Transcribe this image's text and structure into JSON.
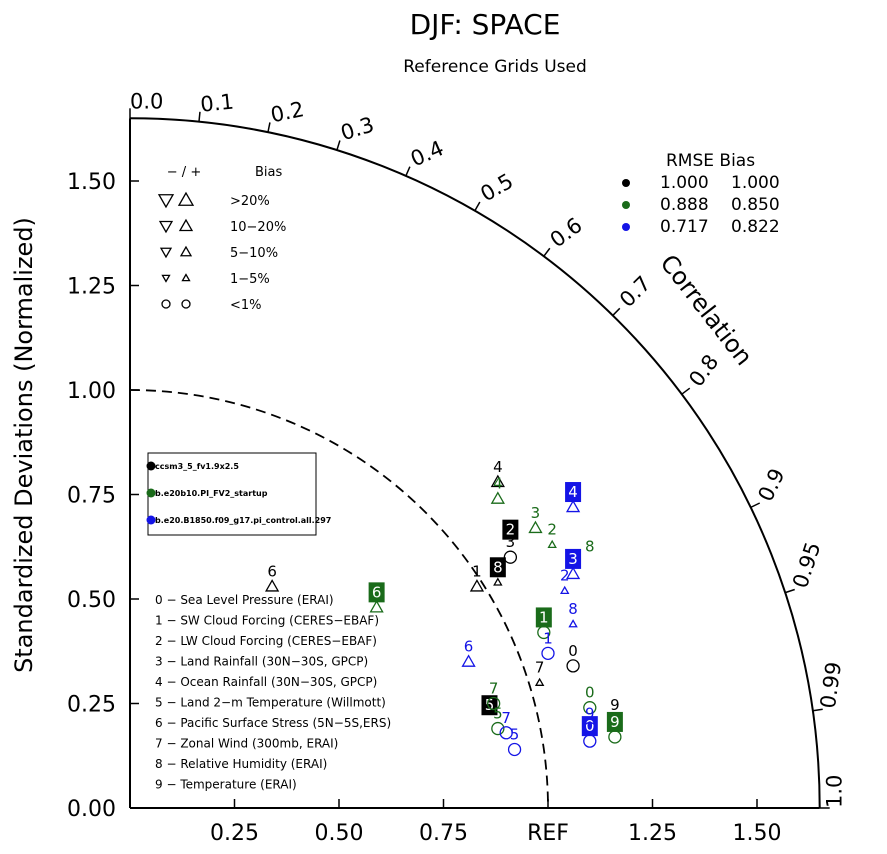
{
  "chart_data": {
    "type": "taylor",
    "title": "DJF: SPACE",
    "subtitle": "Reference Grids Used",
    "ylabel": "Standardized Deviations (Normalized)",
    "corr_label": "Correlation",
    "x_ticks": [
      "0.25",
      "0.50",
      "0.75",
      "REF",
      "1.25",
      "1.50"
    ],
    "y_ticks": [
      "0.00",
      "0.25",
      "0.50",
      "0.75",
      "1.00",
      "1.25",
      "1.50"
    ],
    "corr_ticks": [
      "0.0",
      "0.1",
      "0.2",
      "0.3",
      "0.4",
      "0.5",
      "0.6",
      "0.7",
      "0.8",
      "0.9",
      "0.95",
      "0.99",
      "1.0"
    ],
    "max_std": 1.65,
    "bias_legend": {
      "header_signs": "− / +",
      "header_label": "Bias",
      "rows": [
        ">20%",
        "10−20%",
        "5−10%",
        "1−5%",
        "<1%"
      ]
    },
    "rmse_legend": {
      "header": "RMSE  Bias",
      "rows": [
        {
          "color": "#000000",
          "rmse": "1.000",
          "bias": "1.000"
        },
        {
          "color": "#1a6b1a",
          "rmse": "0.888",
          "bias": "0.850"
        },
        {
          "color": "#1414e6",
          "rmse": "0.717",
          "bias": "0.822"
        }
      ]
    },
    "cases": [
      {
        "name": "ccsm3_5_fv1.9x2.5",
        "color": "#000000"
      },
      {
        "name": "b.e20b10.PI_FV2_startup",
        "color": "#1a6b1a"
      },
      {
        "name": "b.e20.B1850.f09_g17.pi_control.all.297",
        "color": "#1414e6"
      }
    ],
    "variables": [
      "0 − Sea Level Pressure (ERAI)",
      "1 − SW Cloud Forcing (CERES−EBAF)",
      "2 − LW Cloud Forcing (CERES−EBAF)",
      "3 − Land Rainfall (30N−30S, GPCP)",
      "4 − Ocean Rainfall (30N−30S, GPCP)",
      "5 − Land 2−m Temperature (Willmott)",
      "6 − Pacific Surface Stress (5N−5S,ERS)",
      "7 − Zonal Wind (300mb, ERAI)",
      "8 − Relative Humidity (ERAI)",
      "9 − Temperature (ERAI)"
    ],
    "points": [
      {
        "case": 0,
        "var": "0",
        "x": 1.06,
        "y": 0.34,
        "sym": "circle"
      },
      {
        "case": 0,
        "var": "1",
        "x": 0.83,
        "y": 0.53,
        "sym": "up"
      },
      {
        "case": 0,
        "var": "2",
        "x": 0.91,
        "y": 0.63,
        "sym": "none",
        "box": true
      },
      {
        "case": 0,
        "var": "3",
        "x": 0.91,
        "y": 0.6,
        "sym": "circle"
      },
      {
        "case": 0,
        "var": "4",
        "x": 0.88,
        "y": 0.78,
        "sym": "up"
      },
      {
        "case": 0,
        "var": "5",
        "x": 0.86,
        "y": 0.21,
        "sym": "none",
        "box": true
      },
      {
        "case": 0,
        "var": "6",
        "x": 0.34,
        "y": 0.53,
        "sym": "up"
      },
      {
        "case": 0,
        "var": "7",
        "x": 0.98,
        "y": 0.3,
        "sym": "up-small"
      },
      {
        "case": 0,
        "var": "8",
        "x": 0.88,
        "y": 0.54,
        "sym": "up-small",
        "box": true
      },
      {
        "case": 0,
        "var": "9",
        "x": 1.16,
        "y": 0.21,
        "sym": "circle"
      },
      {
        "case": 1,
        "var": "0",
        "x": 1.1,
        "y": 0.24,
        "sym": "circle"
      },
      {
        "case": 1,
        "var": "1",
        "x": 0.99,
        "y": 0.42,
        "sym": "circle",
        "box": true
      },
      {
        "case": 1,
        "var": "2",
        "x": 1.01,
        "y": 0.63,
        "sym": "up-small"
      },
      {
        "case": 1,
        "var": "3",
        "x": 0.97,
        "y": 0.67,
        "sym": "up"
      },
      {
        "case": 1,
        "var": "4",
        "x": 0.88,
        "y": 0.74,
        "sym": "up"
      },
      {
        "case": 1,
        "var": "5",
        "x": 0.88,
        "y": 0.19,
        "sym": "circle"
      },
      {
        "case": 1,
        "var": "6",
        "x": 0.59,
        "y": 0.48,
        "sym": "up",
        "box": true
      },
      {
        "case": 1,
        "var": "7",
        "x": 0.87,
        "y": 0.25,
        "sym": "circle"
      },
      {
        "case": 1,
        "var": "8",
        "x": 1.1,
        "y": 0.59,
        "sym": "none"
      },
      {
        "case": 1,
        "var": "9",
        "x": 1.16,
        "y": 0.17,
        "sym": "circle",
        "box": true
      },
      {
        "case": 2,
        "var": "0",
        "x": 1.1,
        "y": 0.16,
        "sym": "circle",
        "box": true
      },
      {
        "case": 2,
        "var": "1",
        "x": 1.0,
        "y": 0.37,
        "sym": "circle"
      },
      {
        "case": 2,
        "var": "2",
        "x": 1.04,
        "y": 0.52,
        "sym": "up-small"
      },
      {
        "case": 2,
        "var": "3",
        "x": 1.06,
        "y": 0.56,
        "sym": "up",
        "box": true
      },
      {
        "case": 2,
        "var": "4",
        "x": 1.06,
        "y": 0.72,
        "sym": "up",
        "box": true
      },
      {
        "case": 2,
        "var": "5",
        "x": 0.92,
        "y": 0.14,
        "sym": "circle"
      },
      {
        "case": 2,
        "var": "6",
        "x": 0.81,
        "y": 0.35,
        "sym": "up"
      },
      {
        "case": 2,
        "var": "7",
        "x": 0.9,
        "y": 0.18,
        "sym": "circle"
      },
      {
        "case": 2,
        "var": "8",
        "x": 1.06,
        "y": 0.44,
        "sym": "up-small"
      },
      {
        "case": 2,
        "var": "9",
        "x": 1.1,
        "y": 0.19,
        "sym": "circle"
      }
    ]
  }
}
